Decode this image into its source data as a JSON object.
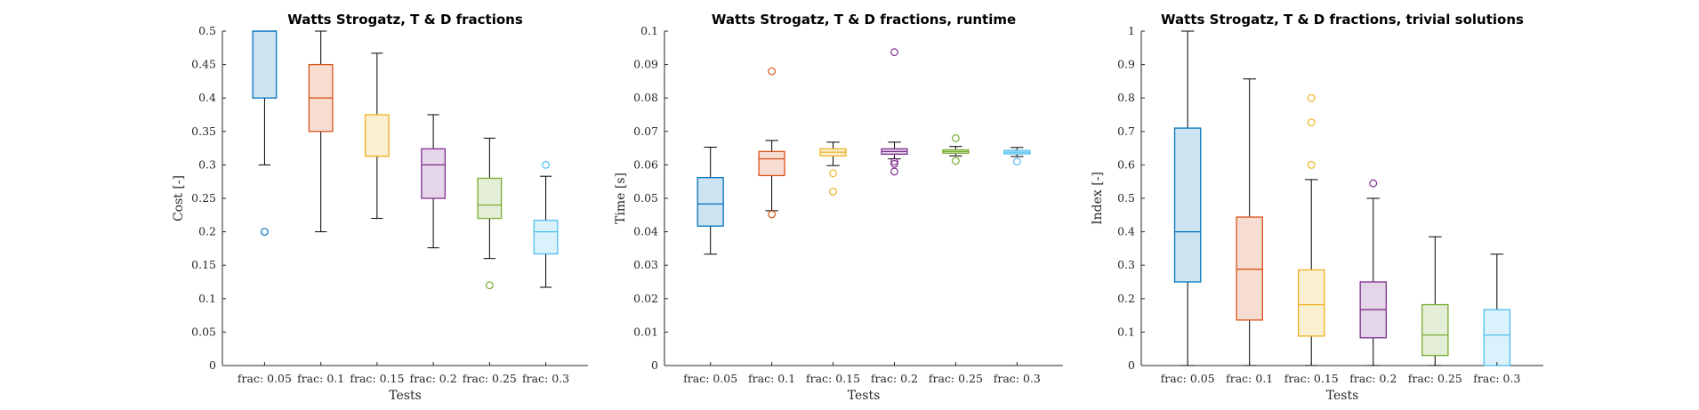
{
  "charts": [
    {
      "type": "box",
      "title": "Watts Strogatz, T & D fractions",
      "xlabel": "Tests",
      "ylabel": "Cost [-]",
      "ylim": [
        0,
        0.5
      ],
      "yticks": [
        "0",
        "0.05",
        "0.1",
        "0.15",
        "0.2",
        "0.25",
        "0.3",
        "0.35",
        "0.4",
        "0.45",
        "0.5"
      ],
      "categories": [
        "frac: 0.05",
        "frac: 0.1",
        "frac: 0.15",
        "frac: 0.2",
        "frac: 0.25",
        "frac: 0.3"
      ],
      "colors": [
        "#0072BD",
        "#D95319",
        "#EDB120",
        "#7E2F8E",
        "#77AC30",
        "#4DBEEE"
      ],
      "boxes": [
        {
          "lowerWhisker": 0.3,
          "q1": 0.4,
          "median": 0.5,
          "q3": 0.5,
          "upperWhisker": 0.5,
          "outliers": [
            0.2
          ]
        },
        {
          "lowerWhisker": 0.2,
          "q1": 0.35,
          "median": 0.4,
          "q3": 0.45,
          "upperWhisker": 0.5,
          "outliers": []
        },
        {
          "lowerWhisker": 0.22,
          "q1": 0.313,
          "median": 0.313,
          "q3": 0.375,
          "upperWhisker": 0.467,
          "outliers": []
        },
        {
          "lowerWhisker": 0.176,
          "q1": 0.25,
          "median": 0.3,
          "q3": 0.324,
          "upperWhisker": 0.375,
          "outliers": []
        },
        {
          "lowerWhisker": 0.16,
          "q1": 0.22,
          "median": 0.24,
          "q3": 0.28,
          "upperWhisker": 0.34,
          "outliers": [
            0.12
          ]
        },
        {
          "lowerWhisker": 0.117,
          "q1": 0.167,
          "median": 0.2,
          "q3": 0.217,
          "upperWhisker": 0.283,
          "outliers": [
            0.3
          ]
        }
      ]
    },
    {
      "type": "box",
      "title": "Watts Strogatz, T & D fractions, runtime",
      "xlabel": "Tests",
      "ylabel": "Time [s]",
      "ylim": [
        0,
        0.1
      ],
      "yticks": [
        "0",
        "0.01",
        "0.02",
        "0.03",
        "0.04",
        "0.05",
        "0.06",
        "0.07",
        "0.08",
        "0.09",
        "0.1"
      ],
      "categories": [
        "frac: 0.05",
        "frac: 0.1",
        "frac: 0.15",
        "frac: 0.2",
        "frac: 0.25",
        "frac: 0.3"
      ],
      "colors": [
        "#0072BD",
        "#D95319",
        "#EDB120",
        "#7E2F8E",
        "#77AC30",
        "#4DBEEE"
      ],
      "boxes": [
        {
          "lowerWhisker": 0.0333,
          "q1": 0.0417,
          "median": 0.0483,
          "q3": 0.0562,
          "upperWhisker": 0.0653,
          "outliers": []
        },
        {
          "lowerWhisker": 0.0463,
          "q1": 0.0568,
          "median": 0.0618,
          "q3": 0.064,
          "upperWhisker": 0.0673,
          "outliers": [
            0.088,
            0.0452
          ]
        },
        {
          "lowerWhisker": 0.0598,
          "q1": 0.0627,
          "median": 0.0638,
          "q3": 0.0648,
          "upperWhisker": 0.0668,
          "outliers": [
            0.0575,
            0.052
          ]
        },
        {
          "lowerWhisker": 0.0618,
          "q1": 0.0632,
          "median": 0.064,
          "q3": 0.0648,
          "upperWhisker": 0.0668,
          "outliers": [
            0.0937,
            0.061,
            0.0603,
            0.058
          ]
        },
        {
          "lowerWhisker": 0.0627,
          "q1": 0.0635,
          "median": 0.064,
          "q3": 0.0645,
          "upperWhisker": 0.0655,
          "outliers": [
            0.068,
            0.0612
          ]
        },
        {
          "lowerWhisker": 0.0625,
          "q1": 0.0633,
          "median": 0.0638,
          "q3": 0.0643,
          "upperWhisker": 0.0652,
          "outliers": [
            0.061
          ]
        }
      ]
    },
    {
      "type": "box",
      "title": "Watts Strogatz, T & D fractions, trivial solutions",
      "xlabel": "Tests",
      "ylabel": "Index [-]",
      "ylim": [
        0,
        1
      ],
      "yticks": [
        "0",
        "0.1",
        "0.2",
        "0.3",
        "0.4",
        "0.5",
        "0.6",
        "0.7",
        "0.8",
        "0.9",
        "1"
      ],
      "categories": [
        "frac: 0.05",
        "frac: 0.1",
        "frac: 0.15",
        "frac: 0.2",
        "frac: 0.25",
        "frac: 0.3"
      ],
      "colors": [
        "#0072BD",
        "#D95319",
        "#EDB120",
        "#7E2F8E",
        "#77AC30",
        "#4DBEEE"
      ],
      "boxes": [
        {
          "lowerWhisker": 0.0,
          "q1": 0.25,
          "median": 0.4,
          "q3": 0.71,
          "upperWhisker": 1.0,
          "outliers": []
        },
        {
          "lowerWhisker": 0.0,
          "q1": 0.136,
          "median": 0.288,
          "q3": 0.444,
          "upperWhisker": 0.857,
          "outliers": []
        },
        {
          "lowerWhisker": 0.0,
          "q1": 0.088,
          "median": 0.182,
          "q3": 0.286,
          "upperWhisker": 0.556,
          "outliers": [
            0.8,
            0.727,
            0.6
          ]
        },
        {
          "lowerWhisker": 0.0,
          "q1": 0.083,
          "median": 0.167,
          "q3": 0.25,
          "upperWhisker": 0.5,
          "outliers": [
            0.545
          ]
        },
        {
          "lowerWhisker": 0.0,
          "q1": 0.03,
          "median": 0.091,
          "q3": 0.182,
          "upperWhisker": 0.385,
          "outliers": []
        },
        {
          "lowerWhisker": 0.0,
          "q1": 0.0,
          "median": 0.091,
          "q3": 0.167,
          "upperWhisker": 0.333,
          "outliers": []
        }
      ]
    }
  ]
}
